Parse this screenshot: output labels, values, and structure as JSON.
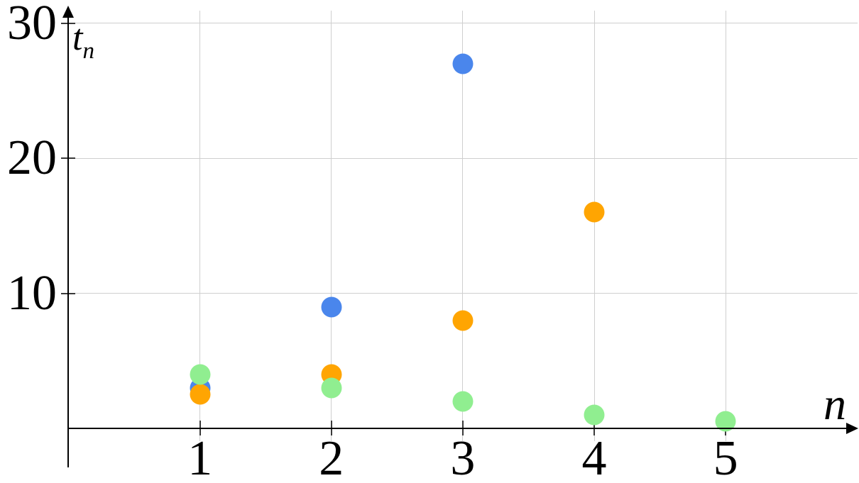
{
  "labels": {
    "x_axis": "n",
    "y_axis_main": "t",
    "y_axis_sub": "n"
  },
  "chart_data": {
    "type": "scatter",
    "title": "",
    "xlabel": "n",
    "ylabel": "t_n",
    "xlim": [
      0,
      6
    ],
    "ylim": [
      0,
      31
    ],
    "grid": true,
    "legend_position": "none",
    "x_ticks": [
      1,
      2,
      3,
      4,
      5
    ],
    "y_ticks": [
      10,
      20,
      30
    ],
    "series": [
      {
        "name": "series-blue",
        "color": "#4a86ec",
        "points": [
          [
            1,
            3
          ],
          [
            2,
            9
          ],
          [
            3,
            27
          ]
        ]
      },
      {
        "name": "series-orange",
        "color": "#ffa502",
        "points": [
          [
            1,
            2.5
          ],
          [
            2,
            4
          ],
          [
            3,
            8
          ],
          [
            4,
            16
          ]
        ]
      },
      {
        "name": "series-green",
        "color": "#90ee90",
        "points": [
          [
            1,
            4
          ],
          [
            2,
            3
          ],
          [
            3,
            2
          ],
          [
            4,
            1
          ],
          [
            5,
            0.5
          ]
        ]
      }
    ]
  }
}
